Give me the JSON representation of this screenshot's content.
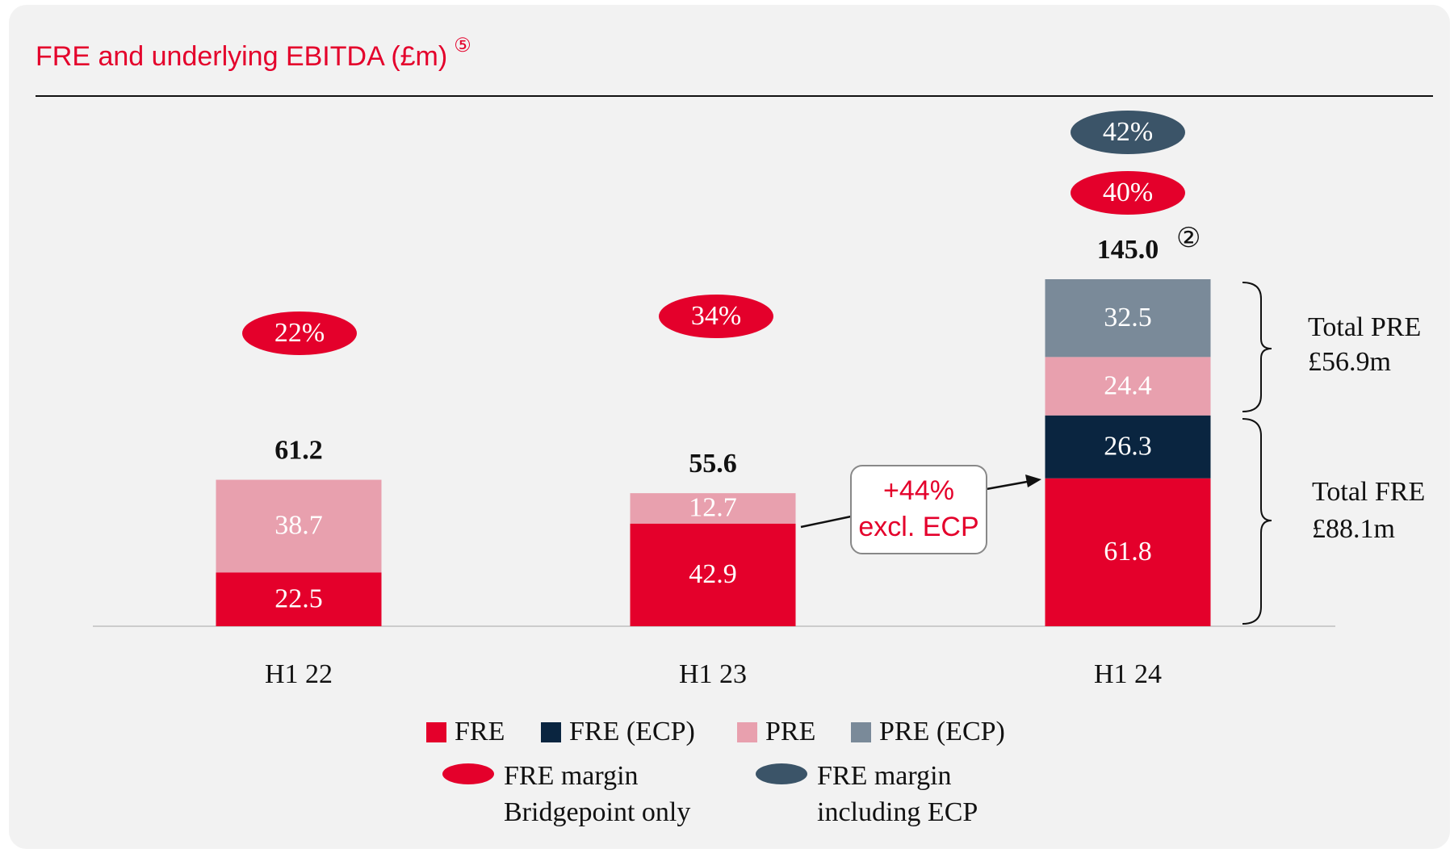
{
  "chart_data": {
    "type": "stacked_bar",
    "title": "FRE and underlying EBITDA (£m)",
    "title_note": "⑤",
    "categories": [
      "H1 22",
      "H1 23",
      "H1 24"
    ],
    "series": [
      {
        "name": "FRE",
        "color": "#e4002b",
        "values": [
          22.5,
          42.9,
          61.8
        ]
      },
      {
        "name": "FRE (ECP)",
        "color": "#0a2540",
        "values": [
          null,
          null,
          26.3
        ]
      },
      {
        "name": "PRE",
        "color": "#e8a0ae",
        "values": [
          38.7,
          12.7,
          24.4
        ]
      },
      {
        "name": "PRE (ECP)",
        "color": "#7a8a99",
        "values": [
          null,
          null,
          32.5
        ]
      }
    ],
    "totals": {
      "values": [
        61.2,
        55.6,
        145.0
      ],
      "value_labels": [
        "61.2",
        "55.6",
        "145.0"
      ],
      "note": "②"
    },
    "margins": [
      {
        "name_lines": [
          "FRE margin",
          "Bridgepoint only"
        ],
        "color": "#e4002b",
        "values": [
          22,
          34,
          40
        ],
        "value_labels": [
          "22%",
          "34%",
          "40%"
        ]
      },
      {
        "name_lines": [
          "FRE margin",
          "including ECP"
        ],
        "color": "#3b5468",
        "values": [
          null,
          null,
          42
        ],
        "value_labels": [
          null,
          null,
          "42%"
        ]
      }
    ],
    "ylim": [
      0,
      145
    ],
    "annotation": {
      "lines": [
        "+44%",
        "excl. ECP"
      ]
    },
    "brackets": [
      {
        "lines": [
          "Total PRE",
          "£56.9m"
        ]
      },
      {
        "lines": [
          "Total FRE",
          "£88.1m"
        ]
      }
    ]
  }
}
